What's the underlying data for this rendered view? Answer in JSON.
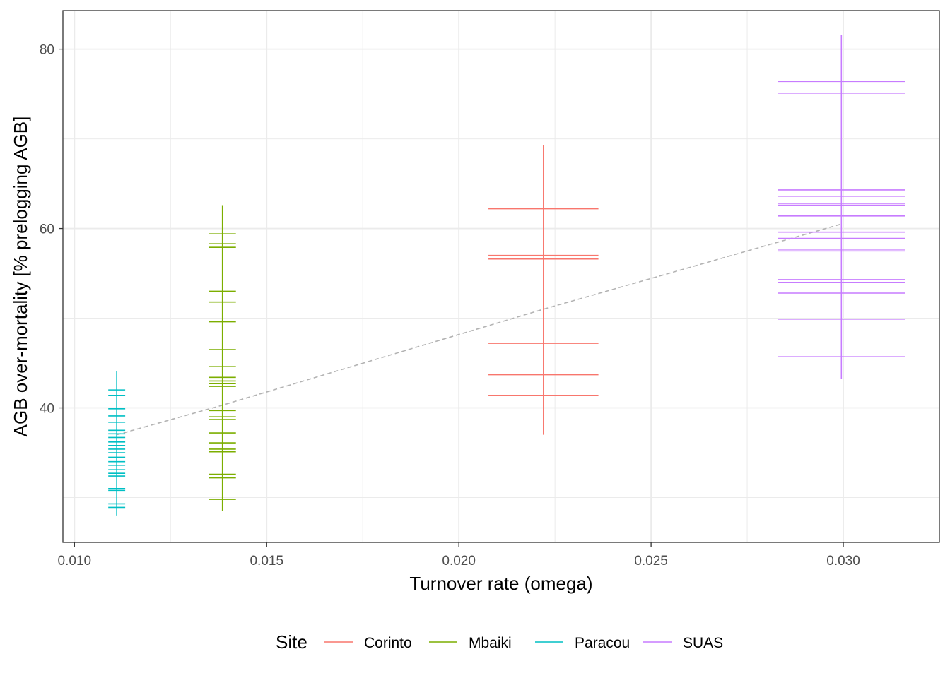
{
  "chart_data": {
    "type": "scatter",
    "title": "",
    "xlabel": "Turnover rate (omega)",
    "ylabel": "AGB over-mortality [% prelogging AGB]",
    "xlim": [
      0.0097,
      0.0325
    ],
    "ylim": [
      25,
      84.3
    ],
    "x_ticks": [
      0.01,
      0.015,
      0.02,
      0.025,
      0.03
    ],
    "x_tick_labels": [
      "0.010",
      "0.015",
      "0.020",
      "0.025",
      "0.030"
    ],
    "y_ticks": [
      40,
      60,
      80
    ],
    "y_tick_labels": [
      "40",
      "60",
      "80"
    ],
    "grid": true,
    "legend": {
      "title": "Site",
      "position": "bottom"
    },
    "errorbar_halfwidth": {
      "Corinto": 0.00143,
      "Mbaiki": 0.00035,
      "Paracou": 0.00022,
      "SUAS": 0.00165
    },
    "series": [
      {
        "name": "Corinto",
        "color": "#F8766D",
        "x": 0.0222,
        "y_range": [
          37.0,
          69.3
        ],
        "y_values": [
          62.2,
          57.0,
          56.6,
          47.2,
          43.7,
          41.4
        ]
      },
      {
        "name": "Mbaiki",
        "color": "#7CAE00",
        "x": 0.01385,
        "y_range": [
          28.5,
          62.6
        ],
        "y_values": [
          59.4,
          58.3,
          57.9,
          53.0,
          51.8,
          49.6,
          46.5,
          44.6,
          43.4,
          43.0,
          42.7,
          42.4,
          39.7,
          39.0,
          38.7,
          37.2,
          36.1,
          35.4,
          35.1,
          32.6,
          32.2,
          29.8
        ]
      },
      {
        "name": "Paracou",
        "color": "#00BFC4",
        "x": 0.0111,
        "y_range": [
          28.0,
          44.1
        ],
        "y_values": [
          42.0,
          41.4,
          39.9,
          39.1,
          38.4,
          37.5,
          37.1,
          36.7,
          36.2,
          35.8,
          35.4,
          35.0,
          34.5,
          34.0,
          33.6,
          33.1,
          32.7,
          32.4,
          31.0,
          30.8,
          29.3,
          28.9
        ]
      },
      {
        "name": "SUAS",
        "color": "#C77CFF",
        "x": 0.02995,
        "y_range": [
          43.2,
          81.6
        ],
        "y_values": [
          76.4,
          75.1,
          64.3,
          63.6,
          62.8,
          62.6,
          61.4,
          59.6,
          58.9,
          57.7,
          57.5,
          54.3,
          54.0,
          52.8,
          49.9,
          45.7
        ]
      }
    ],
    "trend_line": {
      "style": "dashed",
      "color": "#B3B3B3",
      "x": [
        0.0111,
        0.01385,
        0.0222,
        0.02995
      ],
      "y": [
        37.0,
        40.3,
        51.0,
        60.5
      ]
    }
  }
}
